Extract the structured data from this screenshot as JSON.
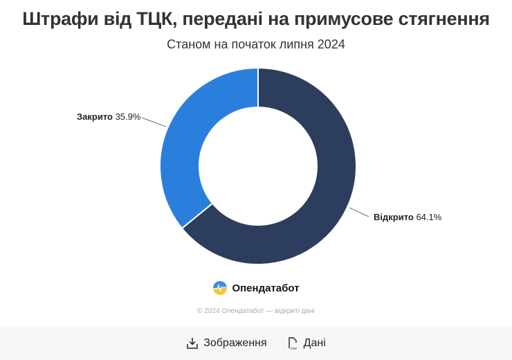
{
  "header": {
    "title": "Штрафи від ТЦК, передані на примусове стягнення",
    "subtitle": "Станом на початок липня 2024"
  },
  "chart_data": {
    "type": "pie",
    "donut": true,
    "title": "Штрафи від ТЦК, передані на примусове стягнення",
    "subtitle": "Станом на початок липня 2024",
    "categories": [
      "Відкрито",
      "Закрито"
    ],
    "values": [
      64.1,
      35.9
    ],
    "unit": "%",
    "colors": [
      "#2d3d5e",
      "#2b7fdc"
    ],
    "labels": [
      {
        "name": "Відкрито",
        "value": "64.1%"
      },
      {
        "name": "Закрито",
        "value": "35.9%"
      }
    ]
  },
  "brand": {
    "name": "Опендатабот",
    "copyright": "© 2024 Опендатабот — відкриті дані"
  },
  "footer": {
    "image_label": "Зображення",
    "data_label": "Дані",
    "csv_tag": "csv"
  }
}
